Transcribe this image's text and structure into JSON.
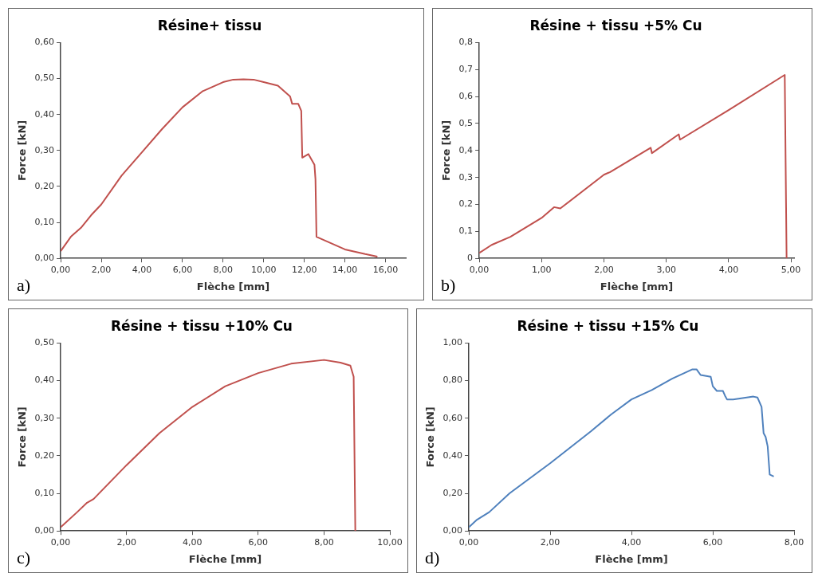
{
  "chart_data": [
    {
      "type": "line",
      "title": "Résine+ tissu",
      "xlabel": "Flèche [mm]",
      "ylabel": "Force [kN]",
      "annotations": [
        "a)"
      ],
      "legend": false,
      "marker": "none",
      "xlim": [
        0,
        17
      ],
      "xticks": [
        {
          "value": 0,
          "label": "0,00"
        },
        {
          "value": 2,
          "label": "2,00"
        },
        {
          "value": 4,
          "label": "4,00"
        },
        {
          "value": 6,
          "label": "6,00"
        },
        {
          "value": 8,
          "label": "8,00"
        },
        {
          "value": 10,
          "label": "10,00"
        },
        {
          "value": 12,
          "label": "12,00"
        },
        {
          "value": 14,
          "label": "14,00"
        },
        {
          "value": 16,
          "label": "16,00"
        }
      ],
      "ylim": [
        0,
        0.6
      ],
      "yticks": [
        {
          "value": 0,
          "label": "0,00"
        },
        {
          "value": 0.1,
          "label": "0,10"
        },
        {
          "value": 0.2,
          "label": "0,20"
        },
        {
          "value": 0.3,
          "label": "0,30"
        },
        {
          "value": 0.4,
          "label": "0,40"
        },
        {
          "value": 0.5,
          "label": "0,50"
        },
        {
          "value": 0.6,
          "label": "0,60"
        }
      ],
      "series": [
        {
          "color": "#c0504d",
          "x": [
            0,
            0.5,
            1,
            1.5,
            2,
            3,
            4,
            5,
            6,
            7,
            8,
            8.5,
            9,
            9.5,
            10,
            10.7,
            11,
            11.3,
            11.4,
            11.7,
            11.85,
            11.9,
            12.2,
            12.5,
            12.55,
            12.6,
            13,
            14,
            15,
            15.6
          ],
          "values": [
            0.02,
            0.06,
            0.085,
            0.12,
            0.15,
            0.23,
            0.295,
            0.36,
            0.42,
            0.465,
            0.49,
            0.497,
            0.498,
            0.497,
            0.49,
            0.48,
            0.465,
            0.45,
            0.43,
            0.43,
            0.41,
            0.28,
            0.29,
            0.26,
            0.22,
            0.06,
            0.05,
            0.025,
            0.012,
            0.005
          ]
        }
      ]
    },
    {
      "type": "line",
      "title": "Résine + tissu +5% Cu",
      "xlabel": "Flèche [mm]",
      "ylabel": "Force [kN]",
      "annotations": [
        "b)"
      ],
      "legend": false,
      "marker": "none",
      "xlim": [
        0,
        5.05
      ],
      "xticks": [
        {
          "value": 0,
          "label": "0,00"
        },
        {
          "value": 1,
          "label": "1,00"
        },
        {
          "value": 2,
          "label": "2,00"
        },
        {
          "value": 3,
          "label": "3,00"
        },
        {
          "value": 4,
          "label": "4,00"
        },
        {
          "value": 5,
          "label": "5,00"
        }
      ],
      "ylim": [
        0,
        0.8
      ],
      "yticks": [
        0,
        {
          "value": 0.1,
          "label": "0,1"
        },
        {
          "value": 0.2,
          "label": "0,2"
        },
        {
          "value": 0.3,
          "label": "0,3"
        },
        {
          "value": 0.4,
          "label": "0,4"
        },
        {
          "value": 0.5,
          "label": "0,5"
        },
        {
          "value": 0.6,
          "label": "0,6"
        },
        {
          "value": 0.7,
          "label": "0,7"
        },
        {
          "value": 0.8,
          "label": "0,8"
        }
      ],
      "series": [
        {
          "color": "#c0504d",
          "x": [
            0,
            0.2,
            0.5,
            1,
            1.2,
            1.3,
            2,
            2.1,
            2.75,
            2.77,
            3.2,
            3.22,
            4,
            4.9,
            4.93
          ],
          "values": [
            0.02,
            0.05,
            0.08,
            0.15,
            0.19,
            0.185,
            0.31,
            0.32,
            0.41,
            0.39,
            0.46,
            0.44,
            0.55,
            0.68,
            0
          ]
        }
      ]
    },
    {
      "type": "line",
      "title": "Résine + tissu +10% Cu",
      "xlabel": "Flèche [mm]",
      "ylabel": "Force [kN]",
      "annotations": [
        "c)"
      ],
      "legend": false,
      "marker": "none",
      "xlim": [
        0,
        10
      ],
      "xticks": [
        {
          "value": 0,
          "label": "0,00"
        },
        {
          "value": 2,
          "label": "2,00"
        },
        {
          "value": 4,
          "label": "4,00"
        },
        {
          "value": 6,
          "label": "6,00"
        },
        {
          "value": 8,
          "label": "8,00"
        },
        {
          "value": 10,
          "label": "10,00"
        }
      ],
      "ylim": [
        0,
        0.5
      ],
      "yticks": [
        {
          "value": 0,
          "label": "0,00"
        },
        {
          "value": 0.1,
          "label": "0,10"
        },
        {
          "value": 0.2,
          "label": "0,20"
        },
        {
          "value": 0.3,
          "label": "0,30"
        },
        {
          "value": 0.4,
          "label": "0,40"
        },
        {
          "value": 0.5,
          "label": "0,50"
        }
      ],
      "series": [
        {
          "color": "#c0504d",
          "x": [
            0,
            0.5,
            0.8,
            1,
            2,
            3,
            4,
            5,
            6,
            7,
            8,
            8.5,
            8.8,
            8.9,
            8.95
          ],
          "values": [
            0.01,
            0.05,
            0.075,
            0.085,
            0.175,
            0.26,
            0.33,
            0.385,
            0.42,
            0.445,
            0.455,
            0.448,
            0.44,
            0.41,
            0
          ]
        }
      ]
    },
    {
      "type": "line",
      "title": "Résine + tissu +15% Cu",
      "xlabel": "Flèche [mm]",
      "ylabel": "Force [kN]",
      "annotations": [
        "d)"
      ],
      "legend": false,
      "marker": "none",
      "xlim": [
        0,
        8
      ],
      "xticks": [
        {
          "value": 0,
          "label": "0,00"
        },
        {
          "value": 2,
          "label": "2,00"
        },
        {
          "value": 4,
          "label": "4,00"
        },
        {
          "value": 6,
          "label": "6,00"
        },
        {
          "value": 8,
          "label": "8,00"
        }
      ],
      "ylim": [
        0,
        1
      ],
      "yticks": [
        {
          "value": 0,
          "label": "0,00"
        },
        {
          "value": 0.2,
          "label": "0,20"
        },
        {
          "value": 0.4,
          "label": "0,40"
        },
        {
          "value": 0.6,
          "label": "0,60"
        },
        {
          "value": 0.8,
          "label": "0,80"
        },
        {
          "value": 1,
          "label": "1,00"
        }
      ],
      "series": [
        {
          "color": "#4f81bd",
          "x": [
            0,
            0.2,
            0.5,
            1,
            2,
            3,
            3.5,
            4,
            4.5,
            5,
            5.5,
            5.6,
            5.7,
            5.95,
            6,
            6.1,
            6.25,
            6.3,
            6.35,
            6.5,
            7,
            7.1,
            7.2,
            7.25,
            7.3,
            7.35,
            7.4,
            7.5
          ],
          "values": [
            0.02,
            0.06,
            0.1,
            0.2,
            0.36,
            0.53,
            0.62,
            0.7,
            0.75,
            0.81,
            0.86,
            0.86,
            0.83,
            0.82,
            0.77,
            0.745,
            0.745,
            0.72,
            0.7,
            0.7,
            0.715,
            0.71,
            0.66,
            0.52,
            0.5,
            0.45,
            0.3,
            0.29
          ]
        }
      ]
    }
  ]
}
